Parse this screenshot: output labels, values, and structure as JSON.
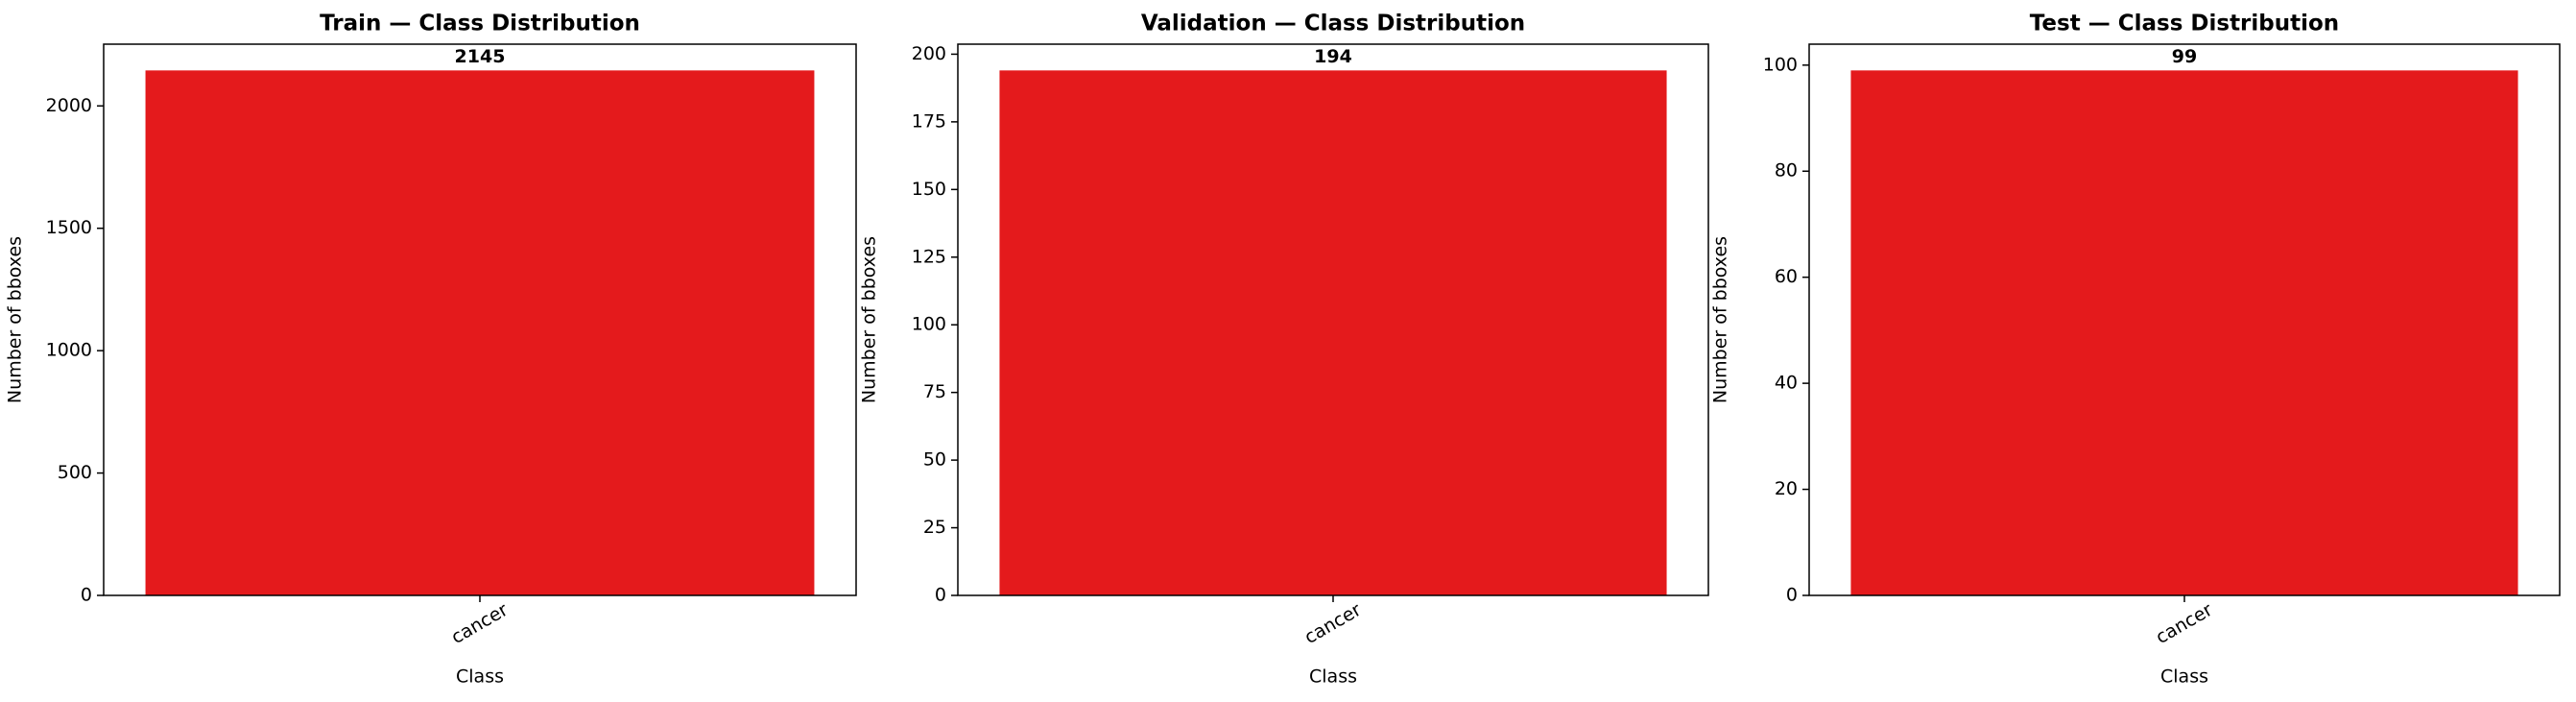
{
  "chart_data": [
    {
      "type": "bar",
      "title": "Train — Class Distribution",
      "xlabel": "Class",
      "ylabel": "Number of bboxes",
      "categories": [
        "cancer"
      ],
      "values": [
        2145
      ],
      "color": "#e41a1c",
      "ylim": [
        0,
        2252.25
      ],
      "yticks": [
        0,
        500,
        1000,
        1500,
        2000
      ]
    },
    {
      "type": "bar",
      "title": "Validation — Class Distribution",
      "xlabel": "Class",
      "ylabel": "Number of bboxes",
      "categories": [
        "cancer"
      ],
      "values": [
        194
      ],
      "color": "#e41a1c",
      "ylim": [
        0,
        203.7
      ],
      "yticks": [
        0,
        25,
        50,
        75,
        100,
        125,
        150,
        175,
        200
      ]
    },
    {
      "type": "bar",
      "title": "Test — Class Distribution",
      "xlabel": "Class",
      "ylabel": "Number of bboxes",
      "categories": [
        "cancer"
      ],
      "values": [
        99
      ],
      "color": "#e41a1c",
      "ylim": [
        0,
        103.95
      ],
      "yticks": [
        0,
        20,
        40,
        60,
        80,
        100
      ]
    }
  ]
}
